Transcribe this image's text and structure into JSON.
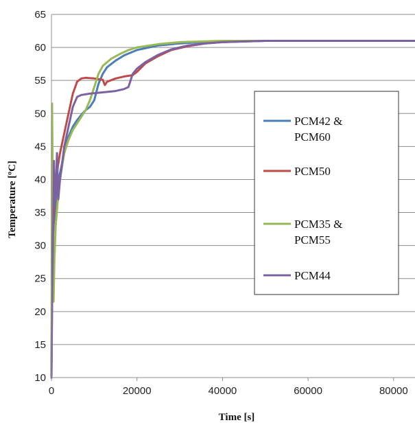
{
  "chart_data": {
    "type": "line",
    "xlabel": "Time [s]",
    "ylabel": "Temperature [ºC]",
    "xlim": [
      0,
      85000
    ],
    "ylim": [
      10,
      65
    ],
    "xticks": [
      0,
      20000,
      40000,
      60000,
      80000
    ],
    "xtick_labels": [
      "0",
      "20000",
      "40000",
      "60000",
      "80000"
    ],
    "yticks": [
      10,
      15,
      20,
      25,
      30,
      35,
      40,
      45,
      50,
      55,
      60,
      65
    ],
    "ytick_labels": [
      "10",
      "15",
      "20",
      "25",
      "30",
      "35",
      "40",
      "45",
      "50",
      "55",
      "60",
      "65"
    ],
    "grid": "horizontal",
    "legend_position": "right",
    "series": [
      {
        "name": "PCM42 & PCM60",
        "legend_lines": [
          "PCM42 &",
          "PCM60"
        ],
        "color": "#4a7ebb",
        "points": [
          [
            0,
            10
          ],
          [
            200,
            28
          ],
          [
            500,
            33
          ],
          [
            1000,
            36
          ],
          [
            1500,
            39
          ],
          [
            2000,
            41
          ],
          [
            3000,
            44
          ],
          [
            4000,
            46.5
          ],
          [
            5000,
            48
          ],
          [
            6000,
            49
          ],
          [
            7000,
            49.8
          ],
          [
            8000,
            50.5
          ],
          [
            9000,
            51
          ],
          [
            10000,
            52
          ],
          [
            11000,
            54.5
          ],
          [
            12000,
            56
          ],
          [
            13000,
            57
          ],
          [
            15000,
            58
          ],
          [
            17000,
            58.8
          ],
          [
            20000,
            59.6
          ],
          [
            25000,
            60.3
          ],
          [
            30000,
            60.6
          ],
          [
            35000,
            60.8
          ],
          [
            40000,
            60.9
          ],
          [
            50000,
            61
          ],
          [
            60000,
            61
          ],
          [
            85000,
            61
          ]
        ]
      },
      {
        "name": "PCM50",
        "legend_lines": [
          "PCM50"
        ],
        "color": "#be4b48",
        "points": [
          [
            0,
            10
          ],
          [
            200,
            28
          ],
          [
            500,
            34
          ],
          [
            1000,
            39
          ],
          [
            1500,
            42
          ],
          [
            2000,
            44
          ],
          [
            3000,
            47
          ],
          [
            4000,
            50
          ],
          [
            5000,
            53
          ],
          [
            6000,
            54.8
          ],
          [
            7000,
            55.3
          ],
          [
            8000,
            55.4
          ],
          [
            10000,
            55.3
          ],
          [
            12000,
            55.1
          ],
          [
            12500,
            54.3
          ],
          [
            13000,
            54.8
          ],
          [
            15000,
            55.3
          ],
          [
            17000,
            55.6
          ],
          [
            19000,
            55.8
          ],
          [
            20000,
            56.3
          ],
          [
            22000,
            57.6
          ],
          [
            25000,
            58.7
          ],
          [
            28000,
            59.6
          ],
          [
            32000,
            60.2
          ],
          [
            36000,
            60.6
          ],
          [
            40000,
            60.8
          ],
          [
            50000,
            61
          ],
          [
            60000,
            61
          ],
          [
            85000,
            61
          ]
        ]
      },
      {
        "name": "PCM35 & PCM55",
        "legend_lines": [
          "PCM35 &",
          "PCM55"
        ],
        "color": "#98b954",
        "points": [
          [
            0,
            10
          ],
          [
            150,
            51.5
          ],
          [
            300,
            40
          ],
          [
            500,
            21.5
          ],
          [
            700,
            28
          ],
          [
            1000,
            33
          ],
          [
            1500,
            37
          ],
          [
            2000,
            40
          ],
          [
            3000,
            44
          ],
          [
            4000,
            46
          ],
          [
            5000,
            47.5
          ],
          [
            6000,
            48.5
          ],
          [
            7000,
            49.5
          ],
          [
            8000,
            50.5
          ],
          [
            9000,
            52
          ],
          [
            10000,
            54
          ],
          [
            11000,
            56
          ],
          [
            12000,
            57.2
          ],
          [
            14000,
            58.3
          ],
          [
            16000,
            59
          ],
          [
            18000,
            59.6
          ],
          [
            20000,
            60
          ],
          [
            25000,
            60.5
          ],
          [
            30000,
            60.8
          ],
          [
            35000,
            60.9
          ],
          [
            40000,
            61
          ],
          [
            85000,
            61
          ]
        ]
      },
      {
        "name": "PCM44",
        "legend_lines": [
          "PCM44"
        ],
        "color": "#7d60a0",
        "points": [
          [
            0,
            10
          ],
          [
            200,
            24
          ],
          [
            400,
            33
          ],
          [
            600,
            42.8
          ],
          [
            800,
            36
          ],
          [
            1000,
            38
          ],
          [
            1300,
            44
          ],
          [
            1600,
            37
          ],
          [
            2000,
            40
          ],
          [
            3000,
            45
          ],
          [
            4000,
            48
          ],
          [
            5000,
            51
          ],
          [
            6000,
            52.5
          ],
          [
            7000,
            52.8
          ],
          [
            9000,
            53
          ],
          [
            12000,
            53.2
          ],
          [
            15000,
            53.4
          ],
          [
            17000,
            53.7
          ],
          [
            18000,
            54
          ],
          [
            19000,
            56
          ],
          [
            20000,
            56.8
          ],
          [
            22000,
            57.8
          ],
          [
            25000,
            58.9
          ],
          [
            28000,
            59.7
          ],
          [
            32000,
            60.3
          ],
          [
            36000,
            60.6
          ],
          [
            40000,
            60.8
          ],
          [
            50000,
            61
          ],
          [
            60000,
            61
          ],
          [
            85000,
            61
          ]
        ]
      }
    ]
  }
}
